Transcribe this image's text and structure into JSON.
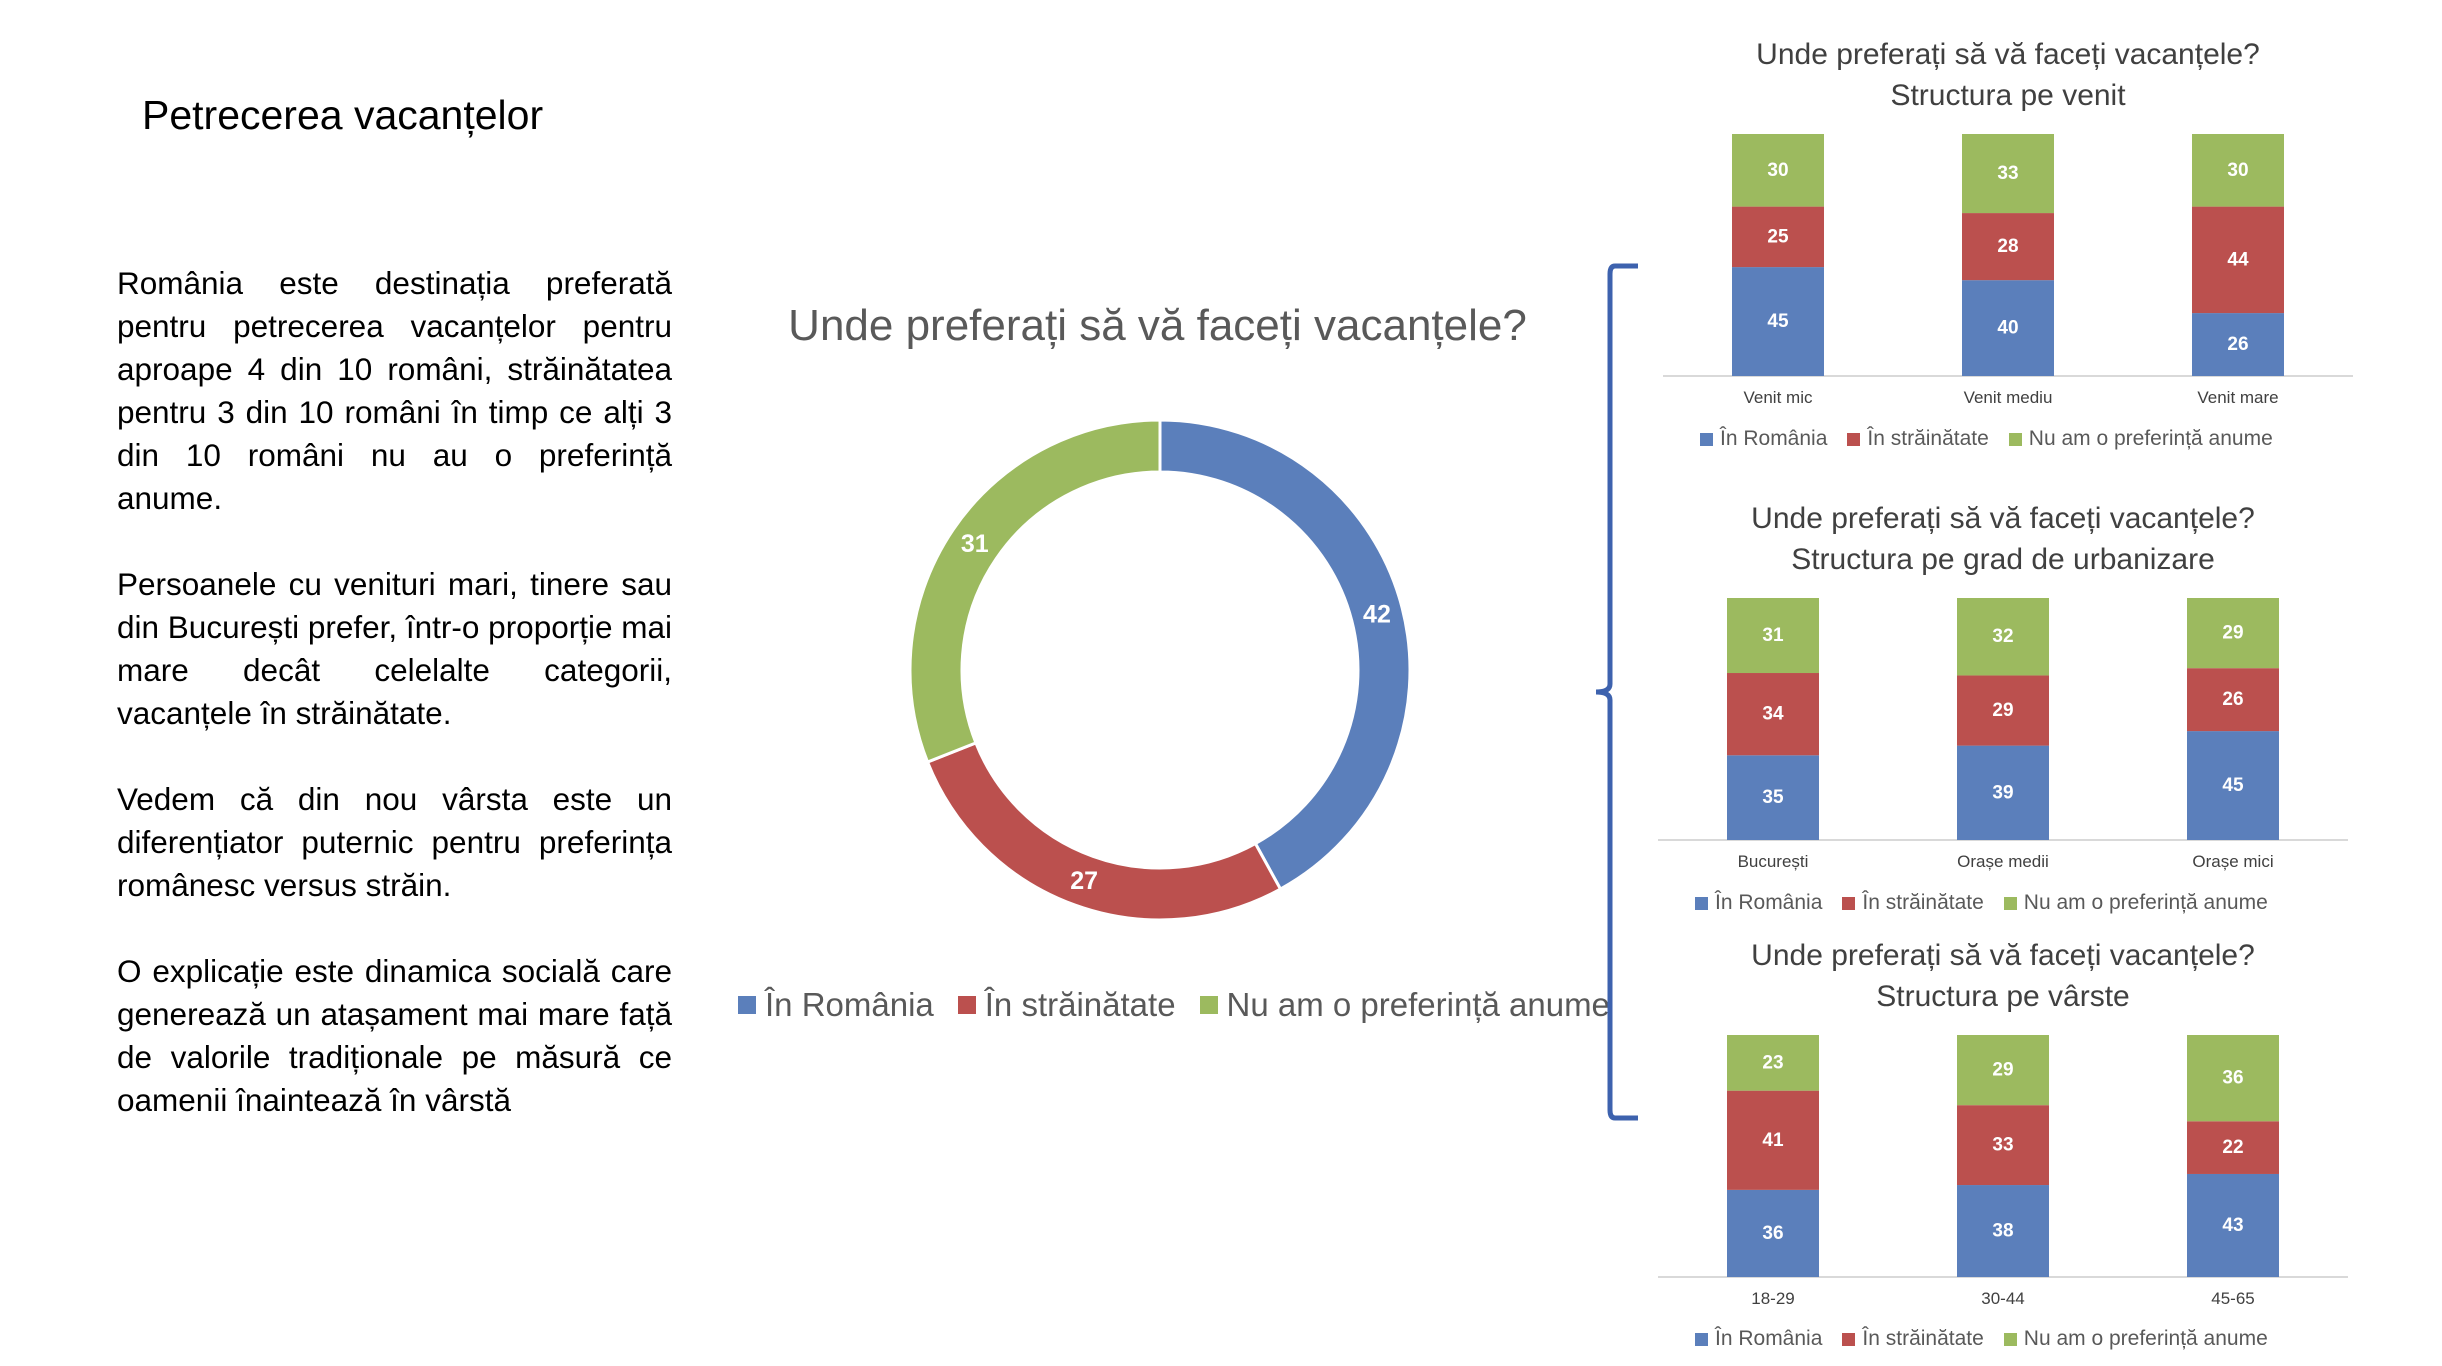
{
  "slide": {
    "title": "Petrecerea vacanțelor",
    "paragraphs": [
      "România este destinația preferată pentru petrecerea vacanțelor pentru aproape 4 din 10 români, străinătatea pentru 3 din 10 români în timp ce alți 3 din 10 români nu au o preferință anume.",
      "Persoanele cu venituri mari, tinere sau din București prefer, într-o proporție mai mare decât celelalte categorii, vacanțele în străinătate.",
      "Vedem că din nou vârsta este un diferențiator puternic pentru preferința românesc versus străin.",
      "O explicație este dinamica socială care generează un atașament mai mare față de valorile tradiționale pe măsură ce oamenii înaintează în vârstă"
    ]
  },
  "colors": {
    "romania": "#5b7fbb",
    "strainatate": "#bb504e",
    "nu_am": "#9cba5f",
    "text_gray": "#595959",
    "brace": "#3d62ae"
  },
  "legend": [
    "În România",
    "În străinătate",
    "Nu am o preferință anume"
  ],
  "chart_data": [
    {
      "type": "pie",
      "subtype": "donut",
      "title": "Unde preferați să vă faceți vacanțele?",
      "categories": [
        "În România",
        "În străinătate",
        "Nu am o preferință anume"
      ],
      "values": [
        42,
        27,
        31
      ],
      "legend_position": "bottom"
    },
    {
      "type": "bar",
      "stacked": true,
      "title": [
        "Unde preferați să vă faceți vacanțele?",
        "Structura pe venit"
      ],
      "categories": [
        "Venit mic",
        "Venit mediu",
        "Venit mare"
      ],
      "series": [
        {
          "name": "În România",
          "values": [
            45,
            40,
            26
          ]
        },
        {
          "name": "În străinătate",
          "values": [
            25,
            28,
            44
          ]
        },
        {
          "name": "Nu am o preferință anume",
          "values": [
            30,
            33,
            30
          ]
        }
      ],
      "legend_position": "bottom"
    },
    {
      "type": "bar",
      "stacked": true,
      "title": [
        "Unde preferați să vă faceți vacanțele?",
        "Structura pe grad de urbanizare"
      ],
      "categories": [
        "București",
        "Orașe medii",
        "Orașe mici"
      ],
      "series": [
        {
          "name": "În România",
          "values": [
            35,
            39,
            45
          ]
        },
        {
          "name": "În străinătate",
          "values": [
            34,
            29,
            26
          ]
        },
        {
          "name": "Nu am o preferință anume",
          "values": [
            31,
            32,
            29
          ]
        }
      ],
      "legend_position": "bottom"
    },
    {
      "type": "bar",
      "stacked": true,
      "title": [
        "Unde preferați să vă faceți vacanțele?",
        "Structura pe vârste"
      ],
      "categories": [
        "18-29",
        "30-44",
        "45-65"
      ],
      "series": [
        {
          "name": "În România",
          "values": [
            36,
            38,
            43
          ]
        },
        {
          "name": "În străinătate",
          "values": [
            41,
            33,
            22
          ]
        },
        {
          "name": "Nu am o preferință anume",
          "values": [
            23,
            29,
            36
          ]
        }
      ],
      "legend_position": "bottom"
    }
  ]
}
